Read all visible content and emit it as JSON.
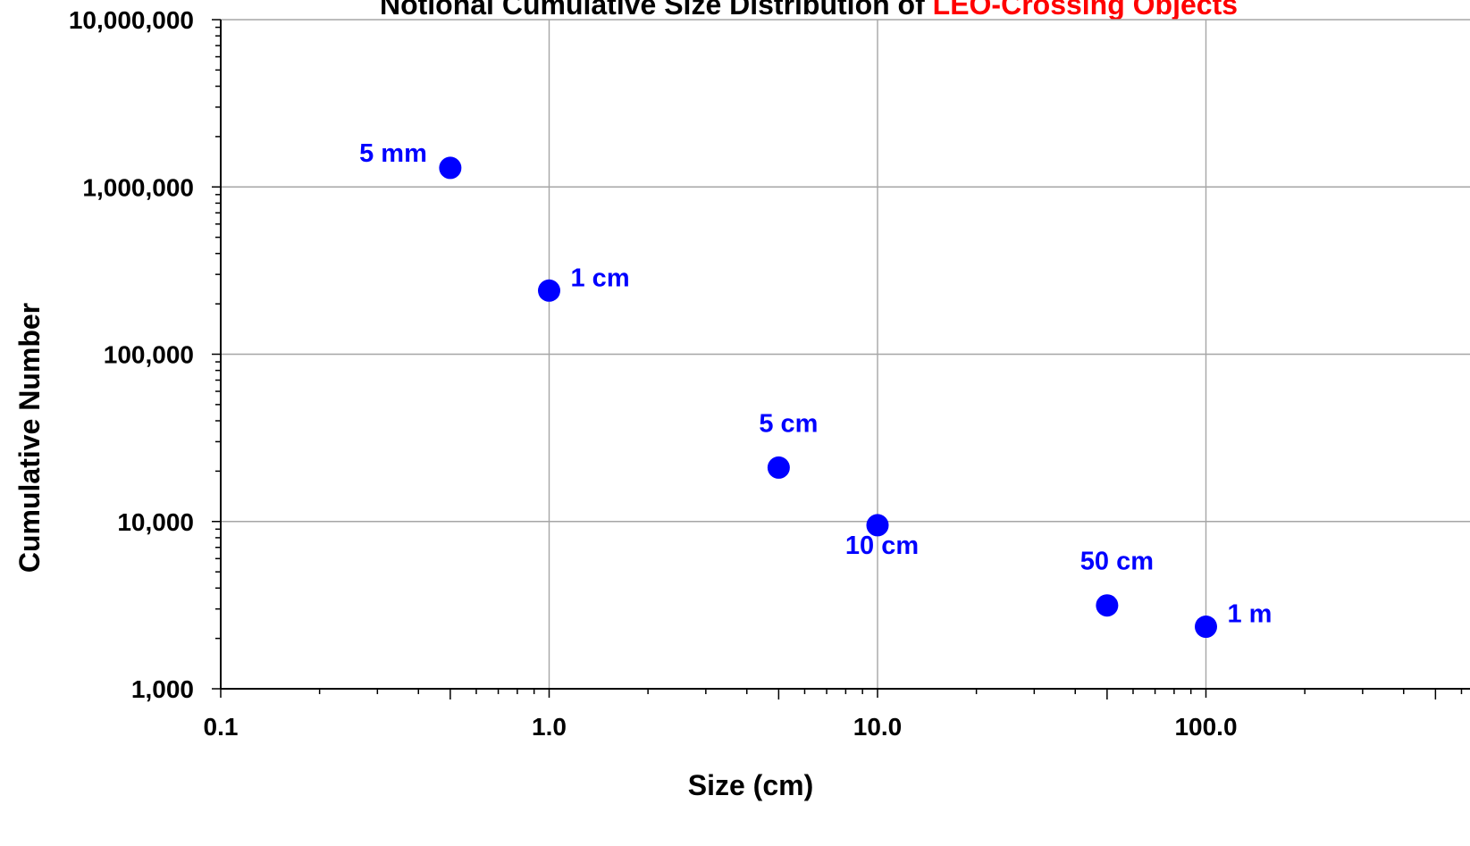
{
  "chart_data": {
    "type": "scatter",
    "title_parts": [
      {
        "text": "Notional Cumulative Size Distribution of ",
        "color": "#000000"
      },
      {
        "text": "LEO-Crossing Objects",
        "color": "#ff0000"
      }
    ],
    "xlabel": "Size (cm)",
    "ylabel": "Cumulative Number",
    "x_scale": "log",
    "y_scale": "log",
    "xlim": [
      0.1,
      500
    ],
    "ylim": [
      1000,
      10000000
    ],
    "grid": true,
    "x_ticks": [
      {
        "value": 0.1,
        "label": "0.1"
      },
      {
        "value": 1,
        "label": "1.0"
      },
      {
        "value": 10,
        "label": "10.0"
      },
      {
        "value": 100,
        "label": "100.0"
      }
    ],
    "y_ticks": [
      {
        "value": 1000,
        "label": "1,000"
      },
      {
        "value": 10000,
        "label": "10,000"
      },
      {
        "value": 100000,
        "label": "100,000"
      },
      {
        "value": 1000000,
        "label": "1,000,000"
      },
      {
        "value": 10000000,
        "label": "10,000,000"
      }
    ],
    "marker_color": "#0000ff",
    "label_color": "#0000ff",
    "points": [
      {
        "x": 0.5,
        "y": 1300000,
        "label": "5 mm",
        "label_pos": "left"
      },
      {
        "x": 1,
        "y": 240000,
        "label": "1 cm",
        "label_pos": "right"
      },
      {
        "x": 5,
        "y": 21000,
        "label": "5 cm",
        "label_pos": "above"
      },
      {
        "x": 10,
        "y": 9500,
        "label": "10 cm",
        "label_pos": "below"
      },
      {
        "x": 50,
        "y": 3150,
        "label": "50 cm",
        "label_pos": "above"
      },
      {
        "x": 100,
        "y": 2350,
        "label": "1 m",
        "label_pos": "right"
      }
    ]
  }
}
